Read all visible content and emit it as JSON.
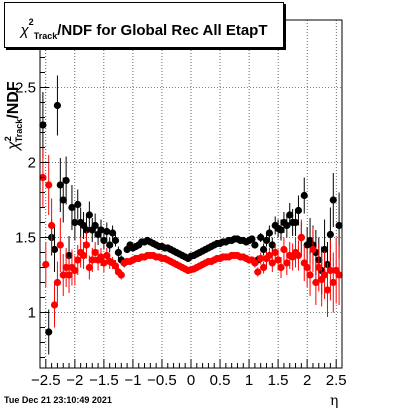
{
  "title": {
    "chi": "χ",
    "sup": "2",
    "sub": "Track",
    "rest": "/NDF for Global Rec All EtapT"
  },
  "ylabel": "χ²Track/NDF",
  "ylabel_parts": {
    "chi": "χ",
    "sup": "2",
    "sub": "Track",
    "rest": "/NDF"
  },
  "xlabel": "η",
  "timestamp": "Tue Dec 21 23:10:49 2021",
  "colors": {
    "series_black": "#000000",
    "series_red": "#ff0000",
    "grid": "#000000",
    "frame": "#000000"
  },
  "chart_data": {
    "type": "scatter",
    "title": "χ²Track/NDF for Global Rec All EtapT",
    "xlabel": "η",
    "ylabel": "χ²Track/NDF",
    "xlim": [
      -2.6,
      2.6
    ],
    "ylim": [
      0.63,
      2.95
    ],
    "xticks": [
      -2.5,
      -2,
      -1.5,
      -1,
      -0.5,
      0,
      0.5,
      1,
      1.5,
      2,
      2.5
    ],
    "xtick_labels": [
      "−2.5",
      "−2",
      "−1.5",
      "−1",
      "−0.5",
      "0",
      "0.5",
      "1",
      "1.5",
      "2",
      "2.5"
    ],
    "yticks": [
      1,
      1.5,
      2,
      2.5
    ],
    "ytick_labels": [
      "1",
      "1.5",
      "2",
      "2.5"
    ],
    "grid": true,
    "markers": "filled circles with vertical error bars",
    "series": [
      {
        "color": "#000000",
        "x": [
          -2.55,
          -2.45,
          -2.4,
          -2.35,
          -2.3,
          -2.25,
          -2.2,
          -2.15,
          -2.1,
          -2.05,
          -2.0,
          -1.95,
          -1.9,
          -1.85,
          -1.8,
          -1.75,
          -1.7,
          -1.65,
          -1.6,
          -1.55,
          -1.5,
          -1.45,
          -1.4,
          -1.35,
          -1.3,
          -1.25,
          -1.2,
          -1.15,
          -1.1,
          -1.05,
          -1.0,
          -0.95,
          -0.9,
          -0.85,
          -0.8,
          -0.75,
          -0.7,
          -0.65,
          -0.6,
          -0.55,
          -0.5,
          -0.45,
          -0.4,
          -0.35,
          -0.3,
          -0.25,
          -0.2,
          -0.15,
          -0.1,
          -0.05,
          0.0,
          0.05,
          0.1,
          0.15,
          0.2,
          0.25,
          0.3,
          0.35,
          0.4,
          0.45,
          0.5,
          0.55,
          0.6,
          0.65,
          0.7,
          0.75,
          0.8,
          0.85,
          0.9,
          0.95,
          1.0,
          1.05,
          1.1,
          1.15,
          1.2,
          1.25,
          1.3,
          1.35,
          1.4,
          1.45,
          1.5,
          1.55,
          1.6,
          1.65,
          1.7,
          1.75,
          1.8,
          1.85,
          1.9,
          1.95,
          2.0,
          2.05,
          2.1,
          2.15,
          2.2,
          2.25,
          2.3,
          2.35,
          2.4,
          2.45,
          2.55
        ],
        "y": [
          2.25,
          0.87,
          1.5,
          1.42,
          2.38,
          1.85,
          1.75,
          1.88,
          1.38,
          1.7,
          1.6,
          1.72,
          1.6,
          1.58,
          1.55,
          1.65,
          1.55,
          1.58,
          1.52,
          1.55,
          1.48,
          1.54,
          1.45,
          1.53,
          1.48,
          1.4,
          1.35,
          1.33,
          1.42,
          1.45,
          1.43,
          1.44,
          1.45,
          1.47,
          1.47,
          1.48,
          1.47,
          1.46,
          1.45,
          1.44,
          1.44,
          1.43,
          1.43,
          1.42,
          1.41,
          1.4,
          1.39,
          1.38,
          1.37,
          1.36,
          1.375,
          1.38,
          1.39,
          1.4,
          1.41,
          1.42,
          1.43,
          1.44,
          1.45,
          1.46,
          1.46,
          1.47,
          1.47,
          1.48,
          1.48,
          1.49,
          1.49,
          1.48,
          1.48,
          1.47,
          1.48,
          1.49,
          1.45,
          1.35,
          1.5,
          1.42,
          1.48,
          1.53,
          1.45,
          1.58,
          1.56,
          1.55,
          1.6,
          1.58,
          1.65,
          1.6,
          1.6,
          1.68,
          1.5,
          1.78,
          1.45,
          1.48,
          1.45,
          1.4,
          1.35,
          1.28,
          1.42,
          1.32,
          1.52,
          1.75,
          1.58
        ],
        "err": [
          0.22,
          0.15,
          0.12,
          0.15,
          0.2,
          0.18,
          0.15,
          0.16,
          0.13,
          0.15,
          0.12,
          0.1,
          0.1,
          0.09,
          0.09,
          0.09,
          0.08,
          0.08,
          0.07,
          0.07,
          0.06,
          0.06,
          0.05,
          0.05,
          0.04,
          0.04,
          0.03,
          0.03,
          0.02,
          0.02,
          0.02,
          0.02,
          0.02,
          0.02,
          0.02,
          0.02,
          0.02,
          0.02,
          0.02,
          0.02,
          0.02,
          0.02,
          0.02,
          0.02,
          0.02,
          0.02,
          0.02,
          0.02,
          0.02,
          0.02,
          0.02,
          0.02,
          0.02,
          0.02,
          0.02,
          0.02,
          0.02,
          0.02,
          0.02,
          0.02,
          0.02,
          0.02,
          0.02,
          0.02,
          0.02,
          0.02,
          0.02,
          0.02,
          0.02,
          0.02,
          0.02,
          0.02,
          0.02,
          0.03,
          0.03,
          0.04,
          0.04,
          0.05,
          0.05,
          0.06,
          0.06,
          0.07,
          0.07,
          0.08,
          0.08,
          0.09,
          0.09,
          0.1,
          0.1,
          0.12,
          0.12,
          0.15,
          0.13,
          0.15,
          0.15,
          0.16,
          0.2,
          0.15,
          0.18,
          0.18,
          0.22
        ]
      },
      {
        "color": "#ff0000",
        "x": [
          -2.55,
          -2.5,
          -2.45,
          -2.4,
          -2.35,
          -2.3,
          -2.25,
          -2.2,
          -2.15,
          -2.1,
          -2.05,
          -2.0,
          -1.95,
          -1.9,
          -1.85,
          -1.8,
          -1.75,
          -1.7,
          -1.65,
          -1.6,
          -1.55,
          -1.5,
          -1.45,
          -1.4,
          -1.35,
          -1.3,
          -1.25,
          -1.2,
          -1.15,
          -1.1,
          -1.05,
          -1.0,
          -0.95,
          -0.9,
          -0.85,
          -0.8,
          -0.75,
          -0.7,
          -0.65,
          -0.6,
          -0.55,
          -0.5,
          -0.45,
          -0.4,
          -0.35,
          -0.3,
          -0.25,
          -0.2,
          -0.15,
          -0.1,
          -0.05,
          0.0,
          0.05,
          0.1,
          0.15,
          0.2,
          0.25,
          0.3,
          0.35,
          0.4,
          0.45,
          0.5,
          0.55,
          0.6,
          0.65,
          0.7,
          0.75,
          0.8,
          0.85,
          0.9,
          0.95,
          1.0,
          1.05,
          1.1,
          1.15,
          1.2,
          1.25,
          1.3,
          1.35,
          1.4,
          1.45,
          1.5,
          1.55,
          1.6,
          1.65,
          1.7,
          1.75,
          1.8,
          1.85,
          1.9,
          1.95,
          2.0,
          2.05,
          2.1,
          2.15,
          2.2,
          2.25,
          2.3,
          2.35,
          2.4,
          2.45,
          2.5,
          2.55
        ],
        "y": [
          1.9,
          1.32,
          1.85,
          1.58,
          1.05,
          1.2,
          1.45,
          1.25,
          1.3,
          1.25,
          1.3,
          1.28,
          1.35,
          1.4,
          1.38,
          1.45,
          1.3,
          1.35,
          1.4,
          1.35,
          1.37,
          1.33,
          1.38,
          1.34,
          1.33,
          1.31,
          1.27,
          1.25,
          1.33,
          1.34,
          1.34,
          1.35,
          1.36,
          1.36,
          1.37,
          1.37,
          1.38,
          1.38,
          1.38,
          1.37,
          1.37,
          1.36,
          1.36,
          1.35,
          1.34,
          1.33,
          1.32,
          1.31,
          1.3,
          1.29,
          1.28,
          1.285,
          1.29,
          1.3,
          1.31,
          1.32,
          1.33,
          1.34,
          1.34,
          1.35,
          1.36,
          1.36,
          1.37,
          1.37,
          1.37,
          1.38,
          1.38,
          1.38,
          1.37,
          1.37,
          1.36,
          1.35,
          1.35,
          1.33,
          1.27,
          1.36,
          1.3,
          1.36,
          1.38,
          1.33,
          1.4,
          1.35,
          1.3,
          1.42,
          1.33,
          1.38,
          1.37,
          1.4,
          1.38,
          1.5,
          1.33,
          1.3,
          1.25,
          1.42,
          1.2,
          1.3,
          1.22,
          1.25,
          1.15,
          1.28,
          1.2,
          1.28,
          1.25
        ],
        "err": [
          0.2,
          0.15,
          0.2,
          0.18,
          0.15,
          0.14,
          0.18,
          0.14,
          0.13,
          0.12,
          0.12,
          0.1,
          0.1,
          0.1,
          0.09,
          0.09,
          0.08,
          0.08,
          0.07,
          0.07,
          0.06,
          0.06,
          0.05,
          0.05,
          0.04,
          0.04,
          0.03,
          0.03,
          0.02,
          0.02,
          0.02,
          0.02,
          0.02,
          0.02,
          0.02,
          0.02,
          0.02,
          0.02,
          0.02,
          0.02,
          0.02,
          0.02,
          0.02,
          0.02,
          0.02,
          0.02,
          0.02,
          0.02,
          0.02,
          0.02,
          0.02,
          0.02,
          0.02,
          0.02,
          0.02,
          0.02,
          0.02,
          0.02,
          0.02,
          0.02,
          0.02,
          0.02,
          0.02,
          0.02,
          0.02,
          0.02,
          0.02,
          0.02,
          0.02,
          0.02,
          0.02,
          0.02,
          0.02,
          0.03,
          0.03,
          0.04,
          0.04,
          0.05,
          0.05,
          0.06,
          0.06,
          0.07,
          0.07,
          0.08,
          0.08,
          0.09,
          0.09,
          0.1,
          0.1,
          0.12,
          0.12,
          0.13,
          0.14,
          0.15,
          0.15,
          0.16,
          0.18,
          0.16,
          0.18,
          0.2,
          0.2,
          0.22,
          0.2
        ]
      }
    ]
  }
}
